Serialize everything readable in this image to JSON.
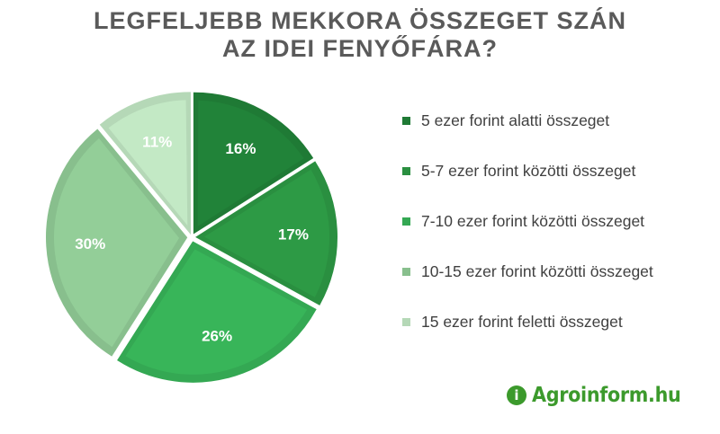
{
  "chart_data": {
    "type": "pie",
    "title_lines": [
      "LEGFELJEBB MEKKORA ÖSSZEGET SZÁN",
      "AZ IDEI FENYŐFÁRA?"
    ],
    "slices": [
      {
        "name": "5 ezer forint alatti összeget",
        "value": 16,
        "label": "16%",
        "color": "#1f7a35"
      },
      {
        "name": "5-7 ezer forint közötti összeget",
        "value": 17,
        "label": "17%",
        "color": "#2a8f40"
      },
      {
        "name": "7-10 ezer forint közötti összeget",
        "value": 26,
        "label": "26%",
        "color": "#34a853"
      },
      {
        "name": "10-15 ezer forint közötti összeget",
        "value": 30,
        "label": "30%",
        "color": "#88bf8d"
      },
      {
        "name": "15 ezer forint feletti összeget",
        "value": 11,
        "label": "11%",
        "color": "#b5d8b7"
      }
    ],
    "legend_position": "right"
  },
  "brand": {
    "icon_letter": "i",
    "name": "Agroinform.hu",
    "color": "#3c9a2c"
  }
}
